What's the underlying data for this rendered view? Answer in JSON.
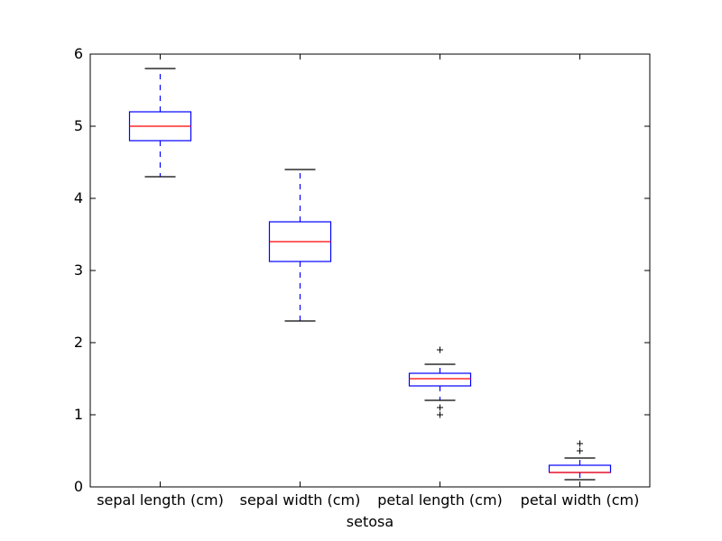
{
  "chart_data": {
    "type": "boxplot",
    "title": "",
    "xlabel": "setosa",
    "ylabel": "",
    "ylim": [
      0,
      6
    ],
    "yticks": [
      0,
      1,
      2,
      3,
      4,
      5,
      6
    ],
    "grid": false,
    "categories": [
      "sepal length (cm)",
      "sepal width (cm)",
      "petal length (cm)",
      "petal width (cm)"
    ],
    "boxes": [
      {
        "name": "sepal length (cm)",
        "whisker_low": 4.3,
        "q1": 4.8,
        "median": 5.0,
        "q3": 5.2,
        "whisker_high": 5.8,
        "outliers": []
      },
      {
        "name": "sepal width (cm)",
        "whisker_low": 2.3,
        "q1": 3.125,
        "median": 3.4,
        "q3": 3.675,
        "whisker_high": 4.4,
        "outliers": []
      },
      {
        "name": "petal length (cm)",
        "whisker_low": 1.2,
        "q1": 1.4,
        "median": 1.5,
        "q3": 1.575,
        "whisker_high": 1.7,
        "outliers": [
          1.0,
          1.1,
          1.9
        ]
      },
      {
        "name": "petal width (cm)",
        "whisker_low": 0.1,
        "q1": 0.2,
        "median": 0.2,
        "q3": 0.3,
        "whisker_high": 0.4,
        "outliers": [
          0.5,
          0.6
        ]
      }
    ],
    "colors": {
      "box": "#0000ff",
      "median": "#ff0000",
      "whisker": "#0000ff",
      "cap": "#000000",
      "flier": "#000000"
    }
  }
}
